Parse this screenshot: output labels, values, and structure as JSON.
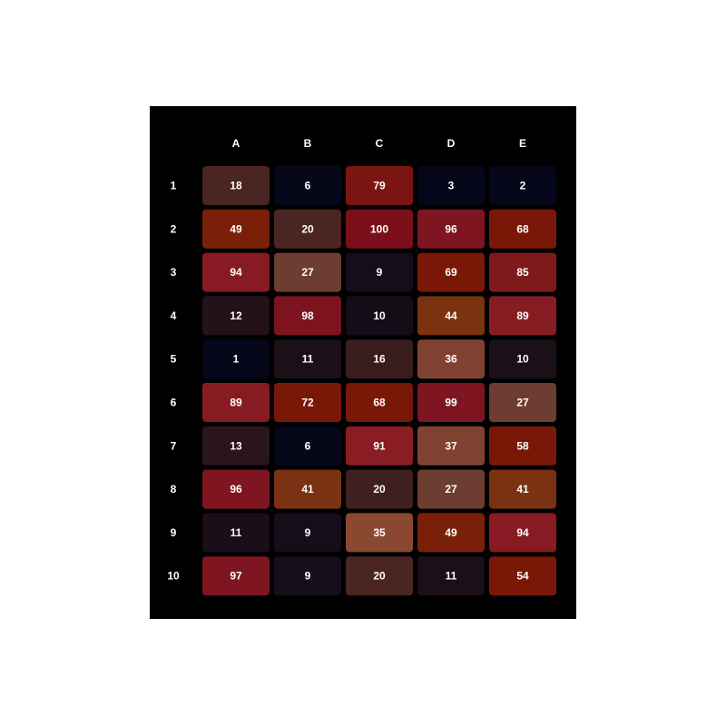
{
  "chart_data": {
    "type": "heatmap",
    "title": "",
    "xlabel": "",
    "ylabel": "",
    "columns": [
      "A",
      "B",
      "C",
      "D",
      "E"
    ],
    "rows": [
      "1",
      "2",
      "3",
      "4",
      "5",
      "6",
      "7",
      "8",
      "9",
      "10"
    ],
    "values": [
      [
        18,
        6,
        79,
        3,
        2
      ],
      [
        49,
        20,
        100,
        96,
        68
      ],
      [
        94,
        27,
        9,
        69,
        85
      ],
      [
        12,
        98,
        10,
        44,
        89
      ],
      [
        1,
        11,
        16,
        36,
        10
      ],
      [
        89,
        72,
        68,
        99,
        27
      ],
      [
        13,
        6,
        91,
        37,
        58
      ],
      [
        96,
        41,
        20,
        27,
        41
      ],
      [
        11,
        9,
        35,
        49,
        94
      ],
      [
        97,
        9,
        20,
        11,
        54
      ]
    ],
    "cell_colors": [
      [
        "#4a2521",
        "#07071a",
        "#7a1511",
        "#06061a",
        "#06061a"
      ],
      [
        "#7a2008",
        "#4a2521",
        "#7a0f1a",
        "#7e1520",
        "#7a1808"
      ],
      [
        "#871a22",
        "#6e3d31",
        "#150d1a",
        "#7a1808",
        "#7e1a1b"
      ],
      [
        "#231319",
        "#7e1320",
        "#140d18",
        "#7a3210",
        "#871c22"
      ],
      [
        "#06061a",
        "#1c1018",
        "#3a1d1d",
        "#804230",
        "#1c1018"
      ],
      [
        "#861c22",
        "#7a1808",
        "#7a1808",
        "#7e1520",
        "#6e3d31"
      ],
      [
        "#2b151c",
        "#07071a",
        "#8a1d23",
        "#804230",
        "#7a1808"
      ],
      [
        "#7e1520",
        "#7a3212",
        "#3e201f",
        "#6e3d31",
        "#7a3212"
      ],
      [
        "#1a0e18",
        "#150d1a",
        "#8a4830",
        "#7a2008",
        "#871a22"
      ],
      [
        "#7e1520",
        "#150d1a",
        "#4a2521",
        "#1c1018",
        "#7a1808"
      ]
    ],
    "text_color": "#ffffff",
    "label_color": "#ffffff",
    "background": "#000000",
    "grid": false,
    "legend": "none"
  }
}
